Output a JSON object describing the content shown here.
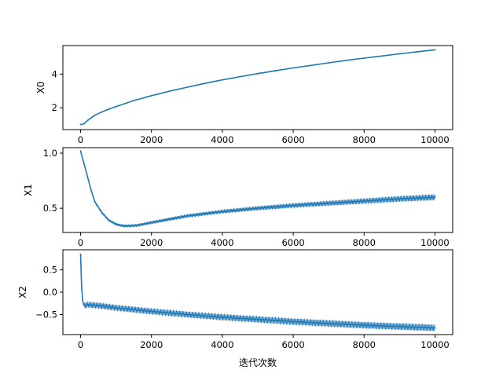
{
  "chart_data": [
    {
      "type": "line",
      "ylabel": "X0",
      "xlabel": "",
      "xlim": [
        -500,
        10500
      ],
      "ylim": [
        0.7,
        5.7
      ],
      "xticks": [
        0,
        2000,
        4000,
        6000,
        8000,
        10000
      ],
      "xtick_labels": [
        "0",
        "2000",
        "4000",
        "6000",
        "8000",
        "10000"
      ],
      "yticks": [
        2,
        4
      ],
      "ytick_labels": [
        "2",
        "4"
      ],
      "color": "#1f77b4",
      "series": [
        {
          "x": [
            0,
            100,
            200,
            400,
            600,
            800,
            1000,
            1500,
            2000,
            2500,
            3000,
            3500,
            4000,
            4500,
            5000,
            5500,
            6000,
            6500,
            7000,
            7500,
            8000,
            8500,
            9000,
            9500,
            10000
          ],
          "y": [
            1.0,
            1.05,
            1.25,
            1.55,
            1.75,
            1.92,
            2.07,
            2.43,
            2.72,
            2.98,
            3.22,
            3.45,
            3.66,
            3.85,
            4.03,
            4.2,
            4.37,
            4.52,
            4.67,
            4.82,
            4.95,
            5.08,
            5.21,
            5.33,
            5.45
          ]
        }
      ]
    },
    {
      "type": "line",
      "ylabel": "X1",
      "xlabel": "",
      "xlim": [
        -500,
        10500
      ],
      "ylim": [
        0.28,
        1.05
      ],
      "xticks": [
        0,
        2000,
        4000,
        6000,
        8000,
        10000
      ],
      "xtick_labels": [
        "0",
        "2000",
        "4000",
        "6000",
        "8000",
        "10000"
      ],
      "yticks": [
        0.5,
        1.0
      ],
      "ytick_labels": [
        "0.5",
        "1.0"
      ],
      "color": "#1f77b4",
      "series": [
        {
          "x": [
            0,
            100,
            200,
            300,
            400,
            600,
            800,
            1000,
            1200,
            1400,
            1600,
            2000,
            2500,
            3000,
            3500,
            4000,
            5000,
            6000,
            7000,
            8000,
            9000,
            10000
          ],
          "y": [
            1.02,
            0.9,
            0.78,
            0.66,
            0.56,
            0.46,
            0.39,
            0.355,
            0.34,
            0.34,
            0.345,
            0.37,
            0.4,
            0.43,
            0.45,
            0.47,
            0.5,
            0.525,
            0.545,
            0.565,
            0.585,
            0.6
          ]
        }
      ],
      "band_x": [
        400,
        10000
      ],
      "band_amplitude": [
        0.01,
        0.025
      ]
    },
    {
      "type": "line",
      "ylabel": "X2",
      "xlabel": "迭代次数",
      "xlim": [
        -500,
        10500
      ],
      "ylim": [
        -0.95,
        0.95
      ],
      "xticks": [
        0,
        2000,
        4000,
        6000,
        8000,
        10000
      ],
      "xtick_labels": [
        "0",
        "2000",
        "4000",
        "6000",
        "8000",
        "10000"
      ],
      "yticks": [
        -0.5,
        0.0,
        0.5
      ],
      "ytick_labels": [
        "−0.5",
        "0.0",
        "0.5"
      ],
      "color": "#1f77b4",
      "series": [
        {
          "x": [
            0,
            30,
            60,
            100,
            200,
            500,
            1000,
            2000,
            3000,
            4000,
            5000,
            6000,
            7000,
            8000,
            9000,
            10000
          ],
          "y": [
            0.85,
            0.1,
            -0.2,
            -0.3,
            -0.28,
            -0.3,
            -0.35,
            -0.43,
            -0.5,
            -0.56,
            -0.61,
            -0.66,
            -0.7,
            -0.74,
            -0.77,
            -0.8
          ]
        }
      ],
      "band_x": [
        100,
        10000
      ],
      "band_amplitude": [
        0.06,
        0.07
      ]
    }
  ]
}
